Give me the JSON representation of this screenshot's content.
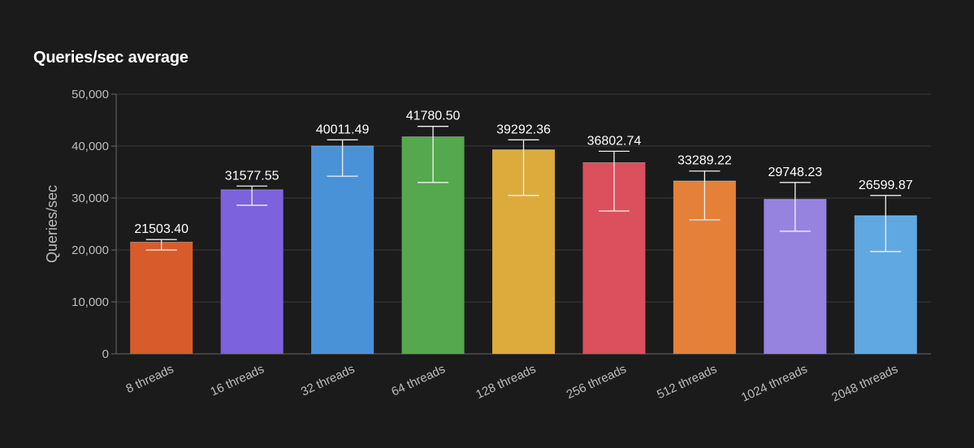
{
  "chart_data": {
    "type": "bar",
    "title": "Queries/sec average",
    "xlabel": "",
    "ylabel": "Queries/sec",
    "ylim": [
      0,
      50000
    ],
    "yticks": [
      0,
      10000,
      20000,
      30000,
      40000,
      50000
    ],
    "ytick_labels": [
      "0",
      "10,000",
      "20,000",
      "30,000",
      "40,000",
      "50,000"
    ],
    "grid": true,
    "categories": [
      "8 threads",
      "16 threads",
      "32 threads",
      "64 threads",
      "128 threads",
      "256 threads",
      "512 threads",
      "1024 threads",
      "2048 threads"
    ],
    "values": [
      21503.4,
      31577.55,
      40011.49,
      41780.5,
      39292.36,
      36802.74,
      33289.22,
      29748.23,
      26599.87
    ],
    "value_labels": [
      "21503.40",
      "31577.55",
      "40011.49",
      "41780.50",
      "39292.36",
      "36802.74",
      "33289.22",
      "29748.23",
      "26599.87"
    ],
    "error_low": [
      20000,
      28600,
      34200,
      33000,
      30500,
      27500,
      25800,
      23600,
      19700
    ],
    "error_high": [
      22000,
      32300,
      41200,
      43800,
      41200,
      39000,
      35200,
      33000,
      30500
    ],
    "colors": [
      "#d85c2b",
      "#7c62dc",
      "#4a92d8",
      "#55a84d",
      "#dcab3c",
      "#dc4f5c",
      "#e58039",
      "#9683e0",
      "#5fa8e2"
    ]
  }
}
